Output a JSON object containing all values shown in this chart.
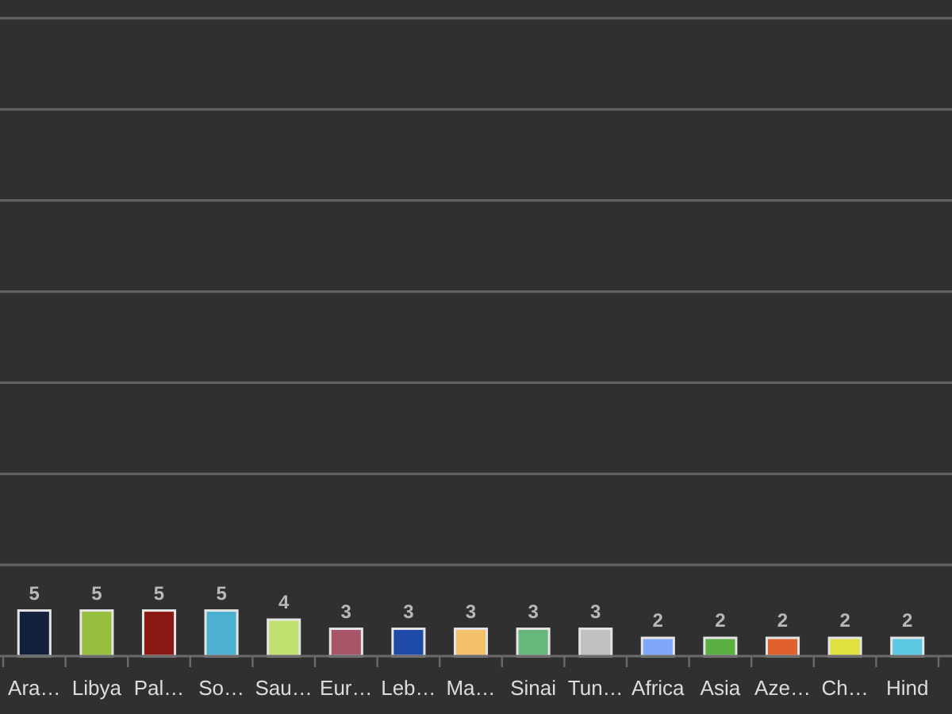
{
  "chart_data": {
    "type": "bar",
    "categories": [
      "Ara…",
      "Libya",
      "Pal…",
      "So…",
      "Sau…",
      "Eur…",
      "Leb…",
      "Ma…",
      "Sinai",
      "Tun…",
      "Africa",
      "Asia",
      "Aze…",
      "Ch…",
      "Hind"
    ],
    "values": [
      5,
      5,
      5,
      5,
      4,
      3,
      3,
      3,
      3,
      3,
      2,
      2,
      2,
      2,
      2
    ],
    "colors": [
      "#13213f",
      "#95bf3c",
      "#8b1a14",
      "#4cb0d0",
      "#c0e070",
      "#a8556a",
      "#1e4aa8",
      "#f5c06a",
      "#66b87a",
      "#c0c0c0",
      "#80a8f8",
      "#5aaf40",
      "#e0602e",
      "#e0e040",
      "#5ac8e0"
    ],
    "ylim": [
      0,
      72
    ],
    "yticks": [
      {
        "value": 10,
        "label": null
      },
      {
        "value": 20,
        "label": null
      },
      {
        "value": 30,
        "label": null
      },
      {
        "value": 40,
        "label": null
      },
      {
        "value": 50,
        "label": null
      },
      {
        "value": 60,
        "label": null
      },
      {
        "value": 70,
        "label": null
      }
    ],
    "grid": "y",
    "tick_labels": "x",
    "data_labels": true
  }
}
